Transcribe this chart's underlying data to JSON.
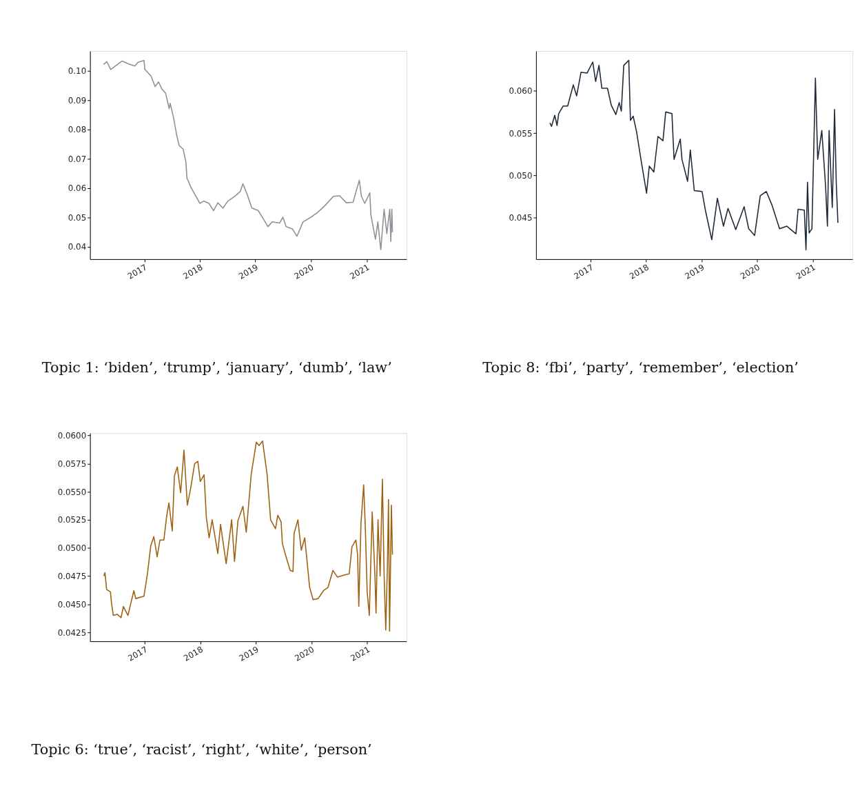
{
  "chart_data": [
    {
      "type": "line",
      "title": "Topic 1: ‘biden’, ‘trump’, ‘january’, ‘dumb’, ‘law’",
      "grid": false,
      "xlim": [
        "2016-01-10",
        "2021-09-20"
      ],
      "xticks": [
        {
          "value": "2017-01-01",
          "label": "2017"
        },
        {
          "value": "2018-01-01",
          "label": "2018"
        },
        {
          "value": "2019-01-01",
          "label": "2019"
        },
        {
          "value": "2020-01-01",
          "label": "2020"
        },
        {
          "value": "2021-01-01",
          "label": "2021"
        }
      ],
      "ylim": [
        0.0358,
        0.1067
      ],
      "yticks": [
        {
          "value": 0.04,
          "label": "0.04"
        },
        {
          "value": 0.05,
          "label": "0.05"
        },
        {
          "value": 0.06,
          "label": "0.06"
        },
        {
          "value": 0.07,
          "label": "0.07"
        },
        {
          "value": 0.08,
          "label": "0.08"
        },
        {
          "value": 0.09,
          "label": "0.09"
        },
        {
          "value": 0.1,
          "label": "0.10"
        }
      ],
      "x": [
        "2016-04-08",
        "2016-04-29",
        "2016-05-25",
        "2016-06-27",
        "2016-08-07",
        "2016-09-20",
        "2016-10-30",
        "2016-11-21",
        "2016-12-30",
        "2017-01-04",
        "2017-02-14",
        "2017-03-13",
        "2017-04-04",
        "2017-04-26",
        "2017-05-21",
        "2017-06-13",
        "2017-06-20",
        "2017-07-12",
        "2017-08-03",
        "2017-08-18",
        "2017-09-13",
        "2017-10-01",
        "2017-10-08",
        "2017-11-03",
        "2017-12-02",
        "2018-01-01",
        "2018-01-26",
        "2018-03-02",
        "2018-04-01",
        "2018-04-29",
        "2018-06-02",
        "2018-07-04",
        "2018-08-18",
        "2018-09-23",
        "2018-10-11",
        "2018-11-07",
        "2018-12-09",
        "2019-01-19",
        "2019-02-25",
        "2019-03-24",
        "2019-04-22",
        "2019-06-09",
        "2019-07-01",
        "2019-07-22",
        "2019-09-02",
        "2019-10-01",
        "2019-11-10",
        "2020-01-01",
        "2020-02-14",
        "2020-04-01",
        "2020-05-28",
        "2020-07-08",
        "2020-08-21",
        "2020-10-04",
        "2020-11-14",
        "2020-11-28",
        "2020-12-20",
        "2021-01-22",
        "2021-01-29",
        "2021-02-28",
        "2021-03-16",
        "2021-04-04",
        "2021-04-26",
        "2021-05-14",
        "2021-06-02",
        "2021-06-09",
        "2021-06-16",
        "2021-06-20"
      ],
      "series": [
        {
          "color": "#8e9196",
          "values": [
            0.1021,
            0.1031,
            0.1004,
            0.1017,
            0.1033,
            0.1023,
            0.1016,
            0.1029,
            0.1035,
            0.1005,
            0.0982,
            0.0946,
            0.0962,
            0.0938,
            0.0923,
            0.0871,
            0.0889,
            0.084,
            0.0777,
            0.0745,
            0.0733,
            0.069,
            0.0635,
            0.0603,
            0.0576,
            0.0548,
            0.0556,
            0.0548,
            0.0523,
            0.055,
            0.0532,
            0.0556,
            0.0572,
            0.0588,
            0.0615,
            0.058,
            0.0532,
            0.0524,
            0.0493,
            0.0469,
            0.0485,
            0.0481,
            0.0501,
            0.0469,
            0.0461,
            0.0436,
            0.0485,
            0.0501,
            0.0517,
            0.054,
            0.0572,
            0.0574,
            0.055,
            0.0552,
            0.0627,
            0.0572,
            0.0548,
            0.0584,
            0.0509,
            0.0426,
            0.0485,
            0.039,
            0.0528,
            0.0445,
            0.0528,
            0.0418,
            0.0528,
            0.045
          ]
        }
      ]
    },
    {
      "type": "line",
      "title": "Topic 8: ‘fbi’, ‘party’, ‘remember’, ‘election’",
      "grid": false,
      "xlim": [
        "2016-01-08",
        "2021-09-20"
      ],
      "xticks": [
        {
          "value": "2017-01-01",
          "label": "2017"
        },
        {
          "value": "2018-01-01",
          "label": "2018"
        },
        {
          "value": "2019-01-01",
          "label": "2019"
        },
        {
          "value": "2020-01-01",
          "label": "2020"
        },
        {
          "value": "2021-01-01",
          "label": "2021"
        }
      ],
      "ylim": [
        0.0401,
        0.0647
      ],
      "yticks": [
        {
          "value": 0.045,
          "label": "0.045"
        },
        {
          "value": 0.05,
          "label": "0.050"
        },
        {
          "value": 0.055,
          "label": "0.055"
        },
        {
          "value": 0.06,
          "label": "0.060"
        }
      ],
      "x": [
        "2016-04-08",
        "2016-04-19",
        "2016-05-10",
        "2016-05-25",
        "2016-06-05",
        "2016-07-04",
        "2016-08-03",
        "2016-08-18",
        "2016-09-09",
        "2016-10-01",
        "2016-10-30",
        "2016-12-09",
        "2017-01-15",
        "2017-02-03",
        "2017-02-25",
        "2017-03-16",
        "2017-04-22",
        "2017-05-17",
        "2017-06-16",
        "2017-07-08",
        "2017-07-22",
        "2017-08-07",
        "2017-09-09",
        "2017-09-20",
        "2017-10-08",
        "2017-10-30",
        "2017-11-28",
        "2018-01-04",
        "2018-01-22",
        "2018-02-21",
        "2018-03-20",
        "2018-04-22",
        "2018-05-10",
        "2018-06-20",
        "2018-07-04",
        "2018-08-14",
        "2018-08-25",
        "2018-10-01",
        "2018-10-19",
        "2018-11-14",
        "2019-01-04",
        "2019-01-26",
        "2019-03-09",
        "2019-04-15",
        "2019-05-25",
        "2019-06-24",
        "2019-08-14",
        "2019-10-08",
        "2019-11-07",
        "2019-12-16",
        "2020-01-22",
        "2020-03-02",
        "2020-04-08",
        "2020-05-28",
        "2020-07-15",
        "2020-09-13",
        "2020-09-27",
        "2020-11-07",
        "2020-11-18",
        "2020-11-28",
        "2020-12-09",
        "2020-12-27",
        "2021-01-19",
        "2021-02-03",
        "2021-03-02",
        "2021-03-27",
        "2021-04-08",
        "2021-04-19",
        "2021-05-10",
        "2021-05-25",
        "2021-06-05",
        "2021-06-16"
      ],
      "series": [
        {
          "color": "#1f2a3a",
          "values": [
            0.0562,
            0.0558,
            0.0571,
            0.0559,
            0.0573,
            0.0582,
            0.0582,
            0.0592,
            0.0607,
            0.0594,
            0.0622,
            0.0621,
            0.0634,
            0.0611,
            0.063,
            0.0603,
            0.0603,
            0.0583,
            0.0572,
            0.0586,
            0.0576,
            0.063,
            0.0636,
            0.0565,
            0.057,
            0.0552,
            0.0519,
            0.0479,
            0.0511,
            0.0504,
            0.0546,
            0.0541,
            0.0575,
            0.0573,
            0.0519,
            0.0543,
            0.0519,
            0.0493,
            0.053,
            0.0482,
            0.0481,
            0.0459,
            0.0424,
            0.0473,
            0.044,
            0.0461,
            0.0436,
            0.0463,
            0.0437,
            0.0429,
            0.0476,
            0.0481,
            0.0465,
            0.0437,
            0.044,
            0.0431,
            0.046,
            0.0459,
            0.0412,
            0.0492,
            0.0432,
            0.0437,
            0.0615,
            0.0519,
            0.0553,
            0.0487,
            0.044,
            0.0553,
            0.0462,
            0.0578,
            0.0492,
            0.0444
          ]
        }
      ]
    },
    {
      "type": "line",
      "title": "Topic 6: ‘true’, ‘racist’, ‘right’, ‘white’, ‘person’",
      "grid": false,
      "xlim": [
        "2016-01-08",
        "2021-09-16"
      ],
      "xticks": [
        {
          "value": "2017-01-01",
          "label": "2017"
        },
        {
          "value": "2018-01-01",
          "label": "2018"
        },
        {
          "value": "2019-01-01",
          "label": "2019"
        },
        {
          "value": "2020-01-01",
          "label": "2020"
        },
        {
          "value": "2021-01-01",
          "label": "2021"
        }
      ],
      "ylim": [
        0.0417,
        0.0602
      ],
      "yticks": [
        {
          "value": 0.0425,
          "label": "0.0425"
        },
        {
          "value": 0.045,
          "label": "0.0450"
        },
        {
          "value": 0.0475,
          "label": "0.0475"
        },
        {
          "value": 0.05,
          "label": "0.0500"
        },
        {
          "value": 0.0525,
          "label": "0.0525"
        },
        {
          "value": 0.055,
          "label": "0.0550"
        },
        {
          "value": 0.0575,
          "label": "0.0575"
        },
        {
          "value": 0.06,
          "label": "0.0600"
        }
      ],
      "x": [
        "2016-04-08",
        "2016-04-15",
        "2016-04-26",
        "2016-05-21",
        "2016-05-28",
        "2016-06-09",
        "2016-07-04",
        "2016-07-30",
        "2016-08-14",
        "2016-09-13",
        "2016-10-04",
        "2016-10-22",
        "2016-11-03",
        "2016-12-27",
        "2017-01-19",
        "2017-02-10",
        "2017-03-02",
        "2017-03-24",
        "2017-04-11",
        "2017-05-07",
        "2017-05-25",
        "2017-06-09",
        "2017-07-01",
        "2017-07-15",
        "2017-08-03",
        "2017-08-25",
        "2017-09-16",
        "2017-10-08",
        "2017-10-30",
        "2017-11-25",
        "2017-12-16",
        "2018-01-01",
        "2018-01-26",
        "2018-02-10",
        "2018-02-28",
        "2018-03-20",
        "2018-04-26",
        "2018-05-14",
        "2018-06-20",
        "2018-07-26",
        "2018-08-14",
        "2018-09-05",
        "2018-10-08",
        "2018-10-30",
        "2018-12-02",
        "2019-01-04",
        "2019-01-22",
        "2019-02-14",
        "2019-03-16",
        "2019-04-08",
        "2019-05-10",
        "2019-05-25",
        "2019-06-16",
        "2019-06-24",
        "2019-07-12",
        "2019-08-14",
        "2019-09-02",
        "2019-09-09",
        "2019-10-04",
        "2019-10-26",
        "2019-11-18",
        "2019-12-20",
        "2020-01-12",
        "2020-02-14",
        "2020-03-20",
        "2020-04-19",
        "2020-05-21",
        "2020-06-20",
        "2020-08-07",
        "2020-09-05",
        "2020-09-23",
        "2020-10-19",
        "2020-10-30",
        "2020-11-07",
        "2020-11-21",
        "2020-12-09",
        "2020-12-20",
        "2021-01-01",
        "2021-01-15",
        "2021-02-03",
        "2021-02-21",
        "2021-02-28",
        "2021-03-13",
        "2021-03-27",
        "2021-04-11",
        "2021-04-22",
        "2021-05-03",
        "2021-05-14",
        "2021-05-21",
        "2021-05-28",
        "2021-06-09",
        "2021-06-16"
      ],
      "series": [
        {
          "color": "#9e6212",
          "values": [
            0.0475,
            0.0478,
            0.0463,
            0.0461,
            0.0451,
            0.044,
            0.0441,
            0.0438,
            0.0448,
            0.044,
            0.0452,
            0.0462,
            0.0455,
            0.0457,
            0.0477,
            0.0502,
            0.051,
            0.0492,
            0.0507,
            0.0507,
            0.0528,
            0.054,
            0.0515,
            0.0564,
            0.0572,
            0.0549,
            0.0587,
            0.0538,
            0.0553,
            0.0575,
            0.0577,
            0.0559,
            0.0565,
            0.0527,
            0.0509,
            0.0525,
            0.0495,
            0.0521,
            0.0486,
            0.0525,
            0.0488,
            0.0524,
            0.0537,
            0.0514,
            0.0566,
            0.0594,
            0.0591,
            0.0595,
            0.0565,
            0.0525,
            0.0517,
            0.0529,
            0.0523,
            0.0504,
            0.0495,
            0.048,
            0.0479,
            0.0513,
            0.0525,
            0.0498,
            0.0509,
            0.0465,
            0.0454,
            0.0455,
            0.0462,
            0.0465,
            0.048,
            0.0474,
            0.0476,
            0.0477,
            0.0501,
            0.0507,
            0.0494,
            0.0448,
            0.0521,
            0.0556,
            0.0517,
            0.0461,
            0.044,
            0.0532,
            0.0475,
            0.0442,
            0.0525,
            0.0475,
            0.0561,
            0.0477,
            0.0427,
            0.0485,
            0.0543,
            0.0426,
            0.0538,
            0.0494
          ]
        }
      ]
    }
  ]
}
